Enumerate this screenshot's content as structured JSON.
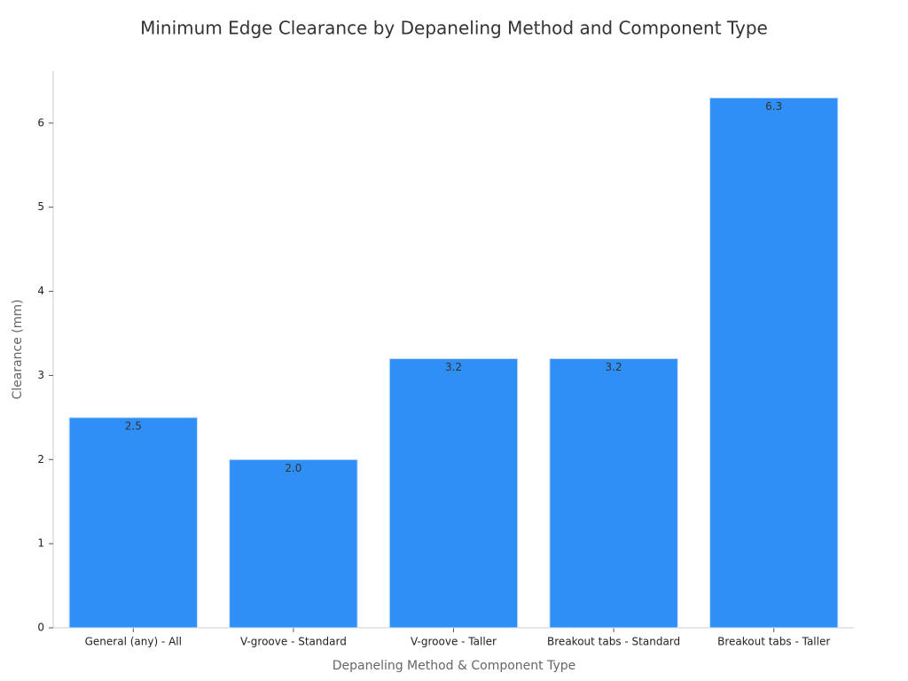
{
  "chart_data": {
    "type": "bar",
    "title": "Minimum Edge Clearance by Depaneling Method and Component Type",
    "x_label": "Depaneling Method & Component Type",
    "y_label": "Clearance (mm)",
    "categories": [
      "General (any) - All",
      "V-groove - Standard",
      "V-groove - Taller",
      "Breakout tabs - Standard",
      "Breakout tabs - Taller"
    ],
    "values": [
      2.5,
      2.0,
      3.2,
      3.2,
      6.3
    ],
    "value_labels": [
      "2.5",
      "2.0",
      "3.2",
      "3.2",
      "6.3"
    ],
    "color": "#2f8ff7",
    "ylim": [
      0,
      6.62
    ],
    "yticks": [
      0,
      1,
      2,
      3,
      4,
      5,
      6
    ],
    "grid": false
  }
}
